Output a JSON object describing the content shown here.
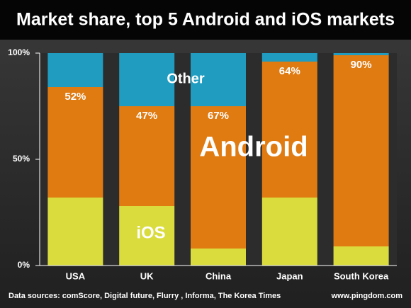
{
  "chart_data": {
    "type": "stacked_bar",
    "title": "Market share, top 5 Android and iOS markets",
    "categories": [
      "USA",
      "UK",
      "China",
      "Japan",
      "South Korea"
    ],
    "series": [
      {
        "name": "iOS",
        "color": "#d9dc3c",
        "values": [
          32,
          28,
          8,
          32,
          9
        ]
      },
      {
        "name": "Android",
        "color": "#e07b12",
        "values": [
          52,
          47,
          67,
          64,
          90
        ],
        "value_labels": [
          "52%",
          "47%",
          "67%",
          "64%",
          "90%"
        ]
      },
      {
        "name": "Other",
        "color": "#1f9cc0",
        "values": [
          16,
          25,
          25,
          4,
          1
        ]
      }
    ],
    "ylim": [
      0,
      100
    ],
    "yticks": [
      {
        "value": 0,
        "label": "0%"
      },
      {
        "value": 50,
        "label": "50%"
      },
      {
        "value": 100,
        "label": "100%"
      }
    ],
    "source": "Data sources: comScore, Digital future, Flurry , Informa, The Korea Times",
    "credit": "www.pingdom.com"
  }
}
